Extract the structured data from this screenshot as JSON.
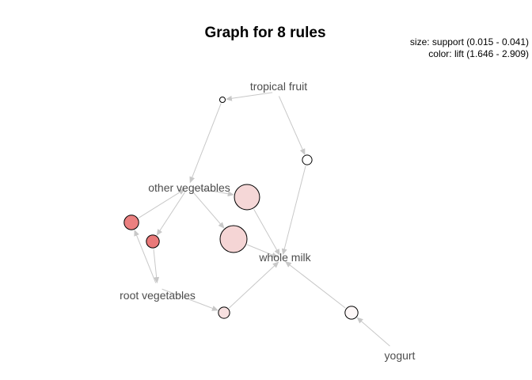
{
  "title": "Graph for 8 rules",
  "legend": {
    "size": "size: support (0.015 - 0.041)",
    "color": "color: lift (1.646 - 2.909)"
  },
  "items": [
    {
      "id": "tropical_fruit",
      "label": "tropical fruit"
    },
    {
      "id": "other_vegetables",
      "label": "other vegetables"
    },
    {
      "id": "whole_milk",
      "label": "whole milk"
    },
    {
      "id": "root_vegetables",
      "label": "root vegetables"
    },
    {
      "id": "yogurt",
      "label": "yogurt"
    }
  ],
  "rules": [
    {
      "id": "r1",
      "support": 0.015,
      "fill": "#ffffff"
    },
    {
      "id": "r2",
      "support": 0.02,
      "fill": "#ffffff"
    },
    {
      "id": "r3",
      "support": 0.039,
      "fill": "#f5d7d7"
    },
    {
      "id": "r4",
      "support": 0.026,
      "fill": "#eb8080"
    },
    {
      "id": "r5",
      "support": 0.024,
      "fill": "#e97979"
    },
    {
      "id": "r6",
      "support": 0.041,
      "fill": "#f5d5d5"
    },
    {
      "id": "r7",
      "support": 0.022,
      "fill": "#f7e0e0"
    },
    {
      "id": "r8",
      "support": 0.024,
      "fill": "#fdf7f7"
    }
  ],
  "edges": [
    [
      "tropical_fruit",
      "r1"
    ],
    [
      "r1",
      "other_vegetables"
    ],
    [
      "tropical_fruit",
      "r2"
    ],
    [
      "r2",
      "whole_milk"
    ],
    [
      "other_vegetables",
      "r3"
    ],
    [
      "r3",
      "whole_milk"
    ],
    [
      "root_vegetables",
      "r4"
    ],
    [
      "r4",
      "other_vegetables"
    ],
    [
      "other_vegetables",
      "r5"
    ],
    [
      "r5",
      "root_vegetables"
    ],
    [
      "other_vegetables",
      "r6"
    ],
    [
      "r6",
      "whole_milk"
    ],
    [
      "root_vegetables",
      "r7"
    ],
    [
      "r7",
      "whole_milk"
    ],
    [
      "yogurt",
      "r8"
    ],
    [
      "r8",
      "whole_milk"
    ]
  ]
}
